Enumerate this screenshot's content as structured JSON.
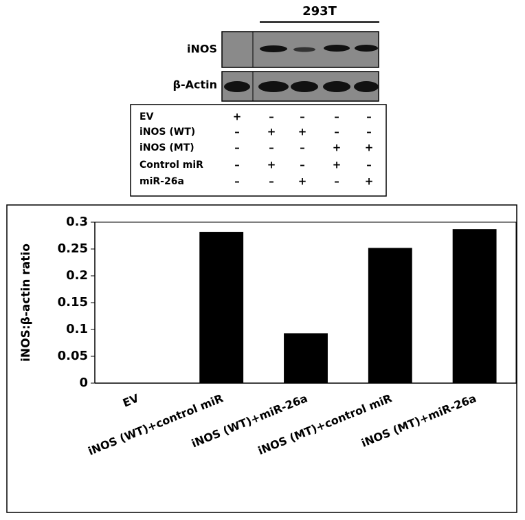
{
  "blot": {
    "cell_line": "293T",
    "rows": [
      "iNOS",
      "β-Actin"
    ]
  },
  "table": {
    "rows": [
      [
        "EV",
        "+",
        "–",
        "–",
        "–",
        "–"
      ],
      [
        "iNOS (WT)",
        "–",
        "+",
        "+",
        "–",
        "–"
      ],
      [
        "iNOS (MT)",
        "–",
        "–",
        "–",
        "+",
        "+"
      ],
      [
        "Control miR",
        "–",
        "+",
        "–",
        "+",
        "–"
      ],
      [
        "miR-26a",
        "–",
        "–",
        "+",
        "–",
        "+"
      ]
    ]
  },
  "chart_data": {
    "type": "bar",
    "ylabel": "iNOS:β-actin ratio",
    "categories": [
      "EV",
      "iNOS (WT)+control miR",
      "iNOS (WT)+miR-26a",
      "iNOS (MT)+control miR",
      "iNOS (MT)+miR-26a"
    ],
    "values": [
      0,
      0.282,
      0.093,
      0.252,
      0.287
    ],
    "color": "#000000",
    "ylim": [
      0,
      0.3
    ],
    "yticks": [
      0,
      0.05,
      0.1,
      0.15,
      0.2,
      0.25,
      0.3
    ]
  }
}
